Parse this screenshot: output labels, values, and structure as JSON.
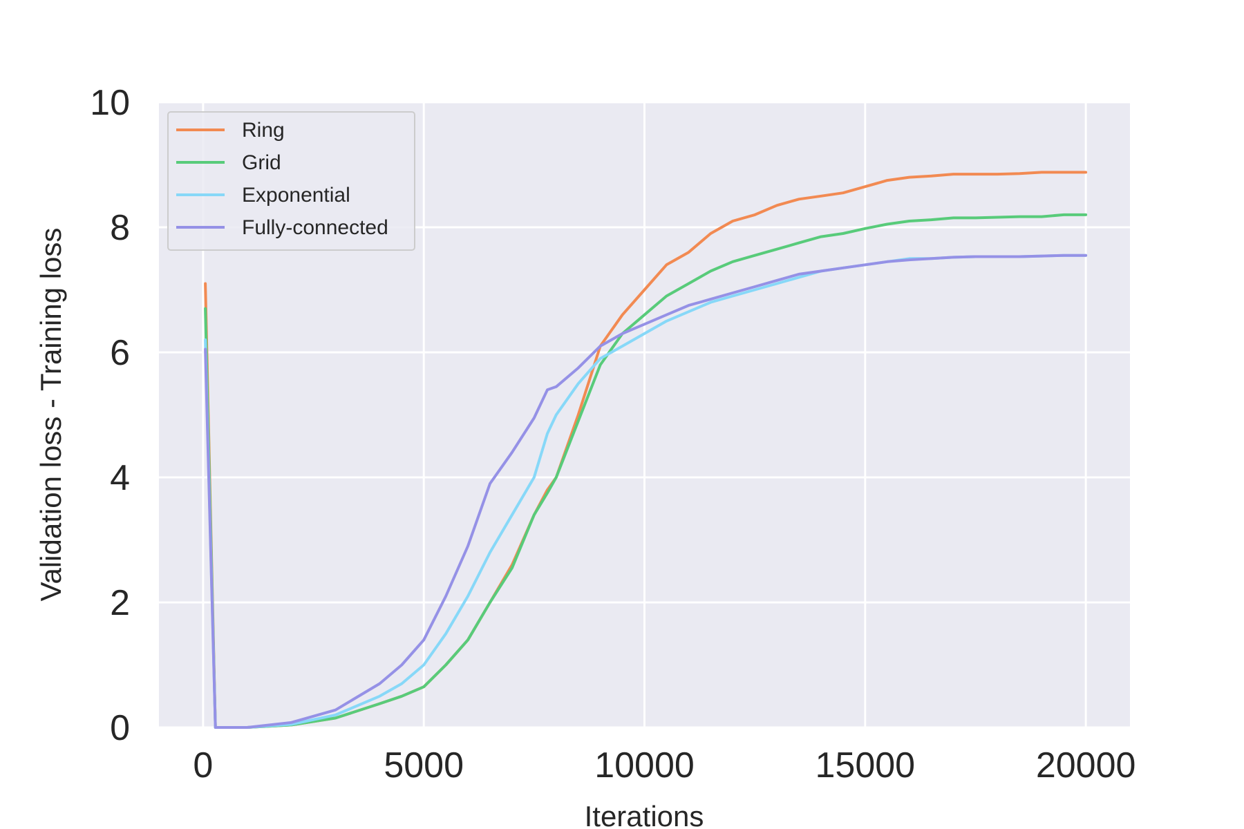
{
  "chart_data": {
    "type": "line",
    "title": "",
    "xlabel": "Iterations",
    "ylabel": "Validation loss - Training loss",
    "xlim": [
      -1000,
      21000
    ],
    "ylim": [
      0,
      10
    ],
    "xticks": [
      0,
      5000,
      10000,
      15000,
      20000
    ],
    "yticks": [
      0,
      2,
      4,
      6,
      8,
      10
    ],
    "xtick_labels": [
      "0",
      "5000",
      "10000",
      "15000",
      "20000"
    ],
    "ytick_labels": [
      "0",
      "2",
      "4",
      "6",
      "8",
      "10"
    ],
    "grid": true,
    "legend_position": "top-left",
    "style": {
      "plot_background": "#eaeaf2",
      "grid_color": "#ffffff"
    },
    "series": [
      {
        "name": "Ring",
        "color": "#f28a52",
        "x": [
          50,
          280,
          1000,
          2000,
          3000,
          4000,
          4500,
          5000,
          5500,
          6000,
          6500,
          7000,
          7500,
          7800,
          8000,
          8500,
          9000,
          9500,
          10000,
          10500,
          11000,
          11500,
          12000,
          12500,
          13000,
          13500,
          14000,
          14500,
          15000,
          15500,
          16000,
          16500,
          17000,
          17500,
          18000,
          18500,
          19000,
          19500,
          20000
        ],
        "y": [
          7.1,
          0,
          0,
          0.04,
          0.15,
          0.38,
          0.5,
          0.65,
          1.0,
          1.4,
          2.0,
          2.6,
          3.4,
          3.8,
          4.0,
          5.0,
          6.1,
          6.6,
          7.0,
          7.4,
          7.6,
          7.9,
          8.1,
          8.2,
          8.35,
          8.45,
          8.5,
          8.55,
          8.65,
          8.75,
          8.8,
          8.82,
          8.85,
          8.85,
          8.85,
          8.86,
          8.88,
          8.88,
          8.88
        ]
      },
      {
        "name": "Grid",
        "color": "#58cb7a",
        "x": [
          50,
          280,
          1000,
          2000,
          3000,
          4000,
          4500,
          5000,
          5500,
          6000,
          6500,
          7000,
          7500,
          7800,
          8000,
          8500,
          9000,
          9500,
          10000,
          10500,
          11000,
          11500,
          12000,
          12500,
          13000,
          13500,
          14000,
          14500,
          15000,
          15500,
          16000,
          16500,
          17000,
          17500,
          18000,
          18500,
          19000,
          19500,
          20000
        ],
        "y": [
          6.7,
          0,
          0,
          0.04,
          0.15,
          0.38,
          0.5,
          0.65,
          1.0,
          1.4,
          2.0,
          2.55,
          3.4,
          3.75,
          4.0,
          4.9,
          5.8,
          6.3,
          6.6,
          6.9,
          7.1,
          7.3,
          7.45,
          7.55,
          7.65,
          7.75,
          7.85,
          7.9,
          7.98,
          8.05,
          8.1,
          8.12,
          8.15,
          8.15,
          8.16,
          8.17,
          8.17,
          8.2,
          8.2
        ]
      },
      {
        "name": "Exponential",
        "color": "#87d8f8",
        "x": [
          50,
          280,
          1000,
          2000,
          3000,
          4000,
          4500,
          5000,
          5500,
          6000,
          6500,
          7000,
          7500,
          7800,
          8000,
          8500,
          9000,
          9500,
          10000,
          10500,
          11000,
          11500,
          12000,
          12500,
          13000,
          13500,
          14000,
          14500,
          15000,
          15500,
          16000,
          16500,
          17000,
          17500,
          18000,
          18500,
          19000,
          19500,
          20000
        ],
        "y": [
          6.2,
          0,
          0,
          0.05,
          0.2,
          0.5,
          0.7,
          1.0,
          1.5,
          2.1,
          2.8,
          3.4,
          4.0,
          4.7,
          5.0,
          5.5,
          5.9,
          6.1,
          6.3,
          6.5,
          6.65,
          6.8,
          6.9,
          7.0,
          7.1,
          7.2,
          7.3,
          7.35,
          7.4,
          7.45,
          7.5,
          7.5,
          7.52,
          7.53,
          7.53,
          7.53,
          7.54,
          7.55,
          7.55
        ]
      },
      {
        "name": "Fully-connected",
        "color": "#9591e6",
        "x": [
          50,
          280,
          1000,
          2000,
          3000,
          4000,
          4500,
          5000,
          5500,
          6000,
          6500,
          7000,
          7500,
          7800,
          8000,
          8500,
          9000,
          9500,
          10000,
          10500,
          11000,
          11500,
          12000,
          12500,
          13000,
          13500,
          14000,
          14500,
          15000,
          15500,
          16000,
          16500,
          17000,
          17500,
          18000,
          18500,
          19000,
          19500,
          20000
        ],
        "y": [
          6.05,
          0,
          0,
          0.08,
          0.28,
          0.7,
          1.0,
          1.4,
          2.1,
          2.9,
          3.9,
          4.4,
          4.95,
          5.4,
          5.45,
          5.75,
          6.1,
          6.3,
          6.45,
          6.6,
          6.75,
          6.85,
          6.95,
          7.05,
          7.15,
          7.25,
          7.3,
          7.35,
          7.4,
          7.45,
          7.48,
          7.5,
          7.52,
          7.53,
          7.53,
          7.53,
          7.54,
          7.55,
          7.55
        ]
      }
    ]
  }
}
